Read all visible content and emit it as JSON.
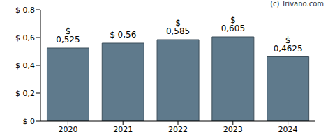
{
  "chart_data": {
    "type": "bar",
    "annotation": "(c) Trivano.com",
    "categories": [
      "2020",
      "2021",
      "2022",
      "2023",
      "2024"
    ],
    "values": [
      0.525,
      0.56,
      0.585,
      0.605,
      0.4625
    ],
    "value_labels": [
      "$ 0,525",
      "$ 0,56",
      "$ 0,585",
      "$ 0,605",
      "$ 0,4625"
    ],
    "data_labels": true,
    "color": "#5f7a8c",
    "ylim": [
      0,
      0.8
    ],
    "yticks": [
      {
        "value": 0,
        "label": "$ 0"
      },
      {
        "value": 0.2,
        "label": "$ 0,2"
      },
      {
        "value": 0.4,
        "label": "$ 0,4"
      },
      {
        "value": 0.6,
        "label": "$ 0,6"
      },
      {
        "value": 0.8,
        "label": "$ 0,8"
      }
    ],
    "grid": false
  }
}
